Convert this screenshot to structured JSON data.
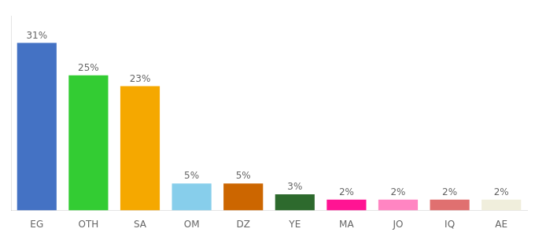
{
  "chart_data": {
    "type": "bar",
    "categories": [
      "EG",
      "OTH",
      "SA",
      "OM",
      "DZ",
      "YE",
      "MA",
      "JO",
      "IQ",
      "AE"
    ],
    "values": [
      31,
      25,
      23,
      5,
      5,
      3,
      2,
      2,
      2,
      2
    ],
    "value_labels": [
      "31%",
      "25%",
      "23%",
      "5%",
      "5%",
      "3%",
      "2%",
      "2%",
      "2%",
      "2%"
    ],
    "colors": [
      "#4472c4",
      "#33cc33",
      "#f5a800",
      "#87ceeb",
      "#cc6600",
      "#2d6a2d",
      "#ff1493",
      "#ff85c2",
      "#e07070",
      "#f0eedc"
    ],
    "ylim": [
      0,
      36
    ],
    "grid": false,
    "data_labels": true,
    "tick_labels": "x"
  }
}
